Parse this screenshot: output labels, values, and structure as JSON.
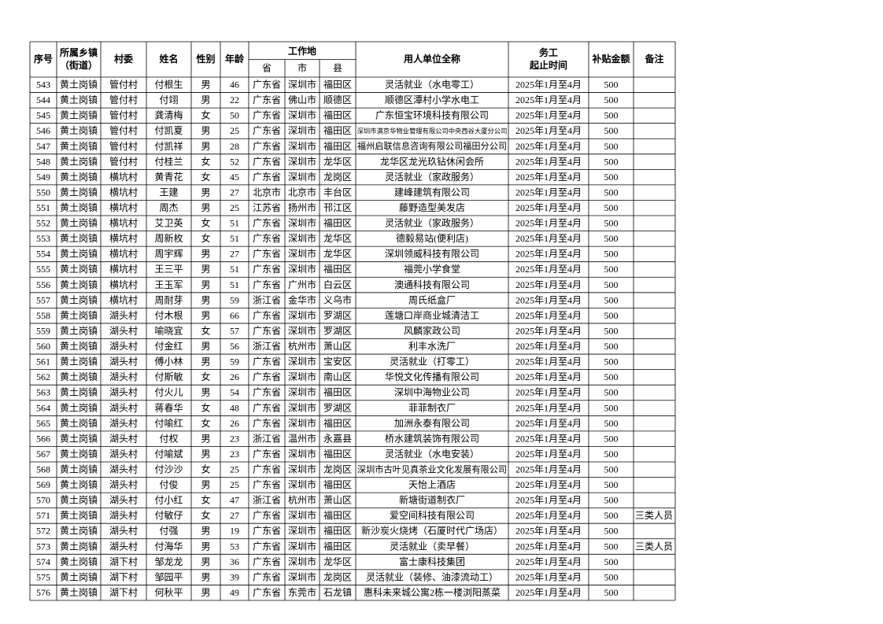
{
  "table": {
    "header": [
      "序号",
      [
        "所属乡镇",
        "（街道）"
      ],
      "村委",
      "姓名",
      "性别",
      "年龄",
      "工作地",
      "用人单位全称",
      [
        "务工",
        "起止时间"
      ],
      "补贴金额",
      "备注"
    ],
    "subheader": [
      "省",
      "市",
      "县"
    ],
    "rows": [
      [
        543,
        "黄土岗镇",
        "管付村",
        "付根生",
        "男",
        46,
        "广东省",
        "深圳市",
        "福田区",
        "灵活就业（水电零工）",
        "2025年1月至4月",
        500,
        null
      ],
      [
        544,
        "黄土岗镇",
        "管付村",
        "付翊",
        "男",
        22,
        "广东省",
        "佛山市",
        "顺德区",
        "顺德区潭村小学水电工",
        "2025年1月至4月",
        500,
        null
      ],
      [
        545,
        "黄土岗镇",
        "管付村",
        "龚清梅",
        "女",
        50,
        "广东省",
        "深圳市",
        "福田区",
        "广东恒宝环境科技有限公司",
        "2025年1月至4月",
        500,
        null
      ],
      [
        546,
        "黄土岗镇",
        "管付村",
        "付凯夏",
        "男",
        25,
        "广东省",
        "深圳市",
        "福田区",
        "深圳市满京华物业管理有限公司中央西谷大厦分公司",
        "2025年1月至4月",
        500,
        null
      ],
      [
        547,
        "黄土岗镇",
        "管付村",
        "付凯祥",
        "男",
        28,
        "广东省",
        "深圳市",
        "福田区",
        "福州启联信息咨询有限公司福田分公司",
        "2025年1月至4月",
        500,
        null
      ],
      [
        548,
        "黄土岗镇",
        "管付村",
        "付桂兰",
        "女",
        52,
        "广东省",
        "深圳市",
        "龙华区",
        "龙华区龙光玖钻休闲会所",
        "2025年1月至4月",
        500,
        null
      ],
      [
        549,
        "黄土岗镇",
        "横坑村",
        "黄青花",
        "女",
        45,
        "广东省",
        "深圳市",
        "龙岗区",
        "灵活就业（家政服务）",
        "2025年1月至4月",
        500,
        null
      ],
      [
        550,
        "黄土岗镇",
        "横坑村",
        "王建",
        "男",
        27,
        "北京市",
        "北京市",
        "丰台区",
        "建峰建筑有限公司",
        "2025年1月至4月",
        500,
        null
      ],
      [
        551,
        "黄土岗镇",
        "横坑村",
        "周杰",
        "男",
        25,
        "江苏省",
        "扬州市",
        "邗江区",
        "藤野造型美发店",
        "2025年1月至4月",
        500,
        null
      ],
      [
        552,
        "黄土岗镇",
        "横坑村",
        "艾卫英",
        "女",
        51,
        "广东省",
        "深圳市",
        "福田区",
        "灵活就业（家政服务）",
        "2025年1月至4月",
        500,
        null
      ],
      [
        553,
        "黄土岗镇",
        "横坑村",
        "周新枚",
        "女",
        51,
        "广东省",
        "深圳市",
        "龙华区",
        "德毅易站(便利店)",
        "2025年1月至4月",
        500,
        null
      ],
      [
        554,
        "黄土岗镇",
        "横坑村",
        "周宇辉",
        "男",
        27,
        "广东省",
        "深圳市",
        "龙华区",
        "深圳领威科技有限公司",
        "2025年1月至4月",
        500,
        null
      ],
      [
        555,
        "黄土岗镇",
        "横坑村",
        "王三平",
        "男",
        51,
        "广东省",
        "深圳市",
        "福田区",
        "福莞小学食堂",
        "2025年1月至4月",
        500,
        null
      ],
      [
        556,
        "黄土岗镇",
        "横坑村",
        "王玉军",
        "男",
        51,
        "广东省",
        "广州市",
        "白云区",
        "澳通科技有限公司",
        "2025年1月至4月",
        500,
        null
      ],
      [
        557,
        "黄土岗镇",
        "横坑村",
        "周耐芽",
        "男",
        59,
        "浙江省",
        "金华市",
        "义乌市",
        "周氏纸盒厂",
        "2025年1月至4月",
        500,
        null
      ],
      [
        558,
        "黄土岗镇",
        "湖头村",
        "付木根",
        "男",
        66,
        "广东省",
        "深圳市",
        "罗湖区",
        "莲塘口岸商业城清洁工",
        "2025年1月至4月",
        500,
        null
      ],
      [
        559,
        "黄土岗镇",
        "湖头村",
        "喻晓宜",
        "女",
        57,
        "广东省",
        "深圳市",
        "罗湖区",
        "风麟家政公司",
        "2025年1月至4月",
        500,
        null
      ],
      [
        560,
        "黄土岗镇",
        "湖头村",
        "付金红",
        "男",
        56,
        "浙江省",
        "杭州市",
        "萧山区",
        "利丰水洗厂",
        "2025年1月至4月",
        500,
        null
      ],
      [
        561,
        "黄土岗镇",
        "湖头村",
        "傅小林",
        "男",
        59,
        "广东省",
        "深圳市",
        "宝安区",
        "灵活就业（打零工）",
        "2025年1月至4月",
        500,
        null
      ],
      [
        562,
        "黄土岗镇",
        "湖头村",
        "付斯敏",
        "女",
        26,
        "广东省",
        "深圳市",
        "南山区",
        "华悦文化传播有限公司",
        "2025年1月至4月",
        500,
        null
      ],
      [
        563,
        "黄土岗镇",
        "湖头村",
        "付火儿",
        "男",
        54,
        "广东省",
        "深圳市",
        "福田区",
        "深圳中海物业公司",
        "2025年1月至4月",
        500,
        null
      ],
      [
        564,
        "黄土岗镇",
        "湖头村",
        "蒋春华",
        "女",
        48,
        "广东省",
        "深圳市",
        "罗湖区",
        "菲菲制衣厂",
        "2025年1月至4月",
        500,
        null
      ],
      [
        565,
        "黄土岗镇",
        "湖头村",
        "付喻红",
        "女",
        26,
        "广东省",
        "深圳市",
        "福田区",
        "加洲永泰有限公司",
        "2025年1月至4月",
        500,
        null
      ],
      [
        566,
        "黄土岗镇",
        "湖头村",
        "付权",
        "男",
        23,
        "浙江省",
        "温州市",
        "永嘉县",
        "桥水建筑装饰有限公司",
        "2025年1月至4月",
        500,
        null
      ],
      [
        567,
        "黄土岗镇",
        "湖头村",
        "付喻斌",
        "男",
        23,
        "广东省",
        "深圳市",
        "福田区",
        "灵活就业（水电安装）",
        "2025年1月至4月",
        500,
        null
      ],
      [
        568,
        "黄土岗镇",
        "湖头村",
        "付沙沙",
        "女",
        25,
        "广东省",
        "深圳市",
        "龙岗区",
        "深圳市古叶见真茶业文化发展有限公司",
        "2025年1月至4月",
        500,
        null
      ],
      [
        569,
        "黄土岗镇",
        "湖头村",
        "付俊",
        "男",
        25,
        "广东省",
        "深圳市",
        "福田区",
        "天怡上酒店",
        "2025年1月至4月",
        500,
        null
      ],
      [
        570,
        "黄土岗镇",
        "湖头村",
        "付小红",
        "女",
        47,
        "浙江省",
        "杭州市",
        "萧山区",
        "新塘街道制衣厂",
        "2025年1月至4月",
        500,
        null
      ],
      [
        571,
        "黄土岗镇",
        "湖头村",
        "付敏仔",
        "女",
        27,
        "广东省",
        "深圳市",
        "福田区",
        "爱空间科技有限公司",
        "2025年1月至4月",
        500,
        "三类人员"
      ],
      [
        572,
        "黄土岗镇",
        "湖头村",
        "付强",
        "男",
        19,
        "广东省",
        "深圳市",
        "福田区",
        "新沙炭火烧烤（石厦时代广场店）",
        "2025年1月至4月",
        500,
        null
      ],
      [
        573,
        "黄土岗镇",
        "湖头村",
        "付海华",
        "男",
        53,
        "广东省",
        "深圳市",
        "福田区",
        "灵活就业（卖早餐）",
        "2025年1月至4月",
        500,
        "三类人员"
      ],
      [
        574,
        "黄土岗镇",
        "湖下村",
        "邹龙龙",
        "男",
        36,
        "广东省",
        "深圳市",
        "龙华区",
        "富士康科技集团",
        "2025年1月至4月",
        500,
        null
      ],
      [
        575,
        "黄土岗镇",
        "湖下村",
        "邹园平",
        "男",
        39,
        "广东省",
        "深圳市",
        "龙岗区",
        "灵活就业（装修、油漆流动工）",
        "2025年1月至4月",
        500,
        null
      ],
      [
        576,
        "黄土岗镇",
        "湖下村",
        "何秋平",
        "男",
        49,
        "广东省",
        "东莞市",
        "石龙镇",
        "惠科未来城公寓2栋一楼浏阳蒸菜",
        "2025年1月至4月",
        500,
        null
      ]
    ]
  }
}
